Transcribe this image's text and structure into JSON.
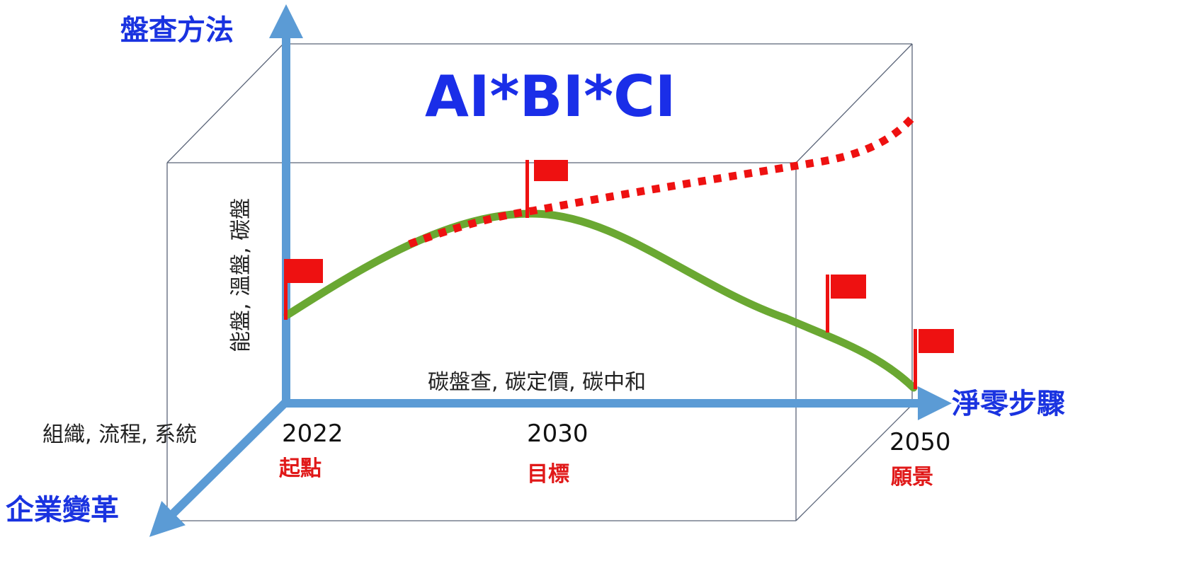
{
  "title": "AI*BI*CI",
  "axes": {
    "vertical_title": "盤查方法",
    "vertical_items": "能盤, 溫盤, 碳盤",
    "horizontal_title": "淨零步驟",
    "horizontal_items": "碳盤查, 碳定價, 碳中和",
    "depth_title": "企業變革",
    "depth_items": "組織, 流程, 系統"
  },
  "milestones": [
    {
      "year": "2022",
      "label": "起點"
    },
    {
      "year": "2030",
      "label": "目標"
    },
    {
      "year": "2050",
      "label": "願景"
    }
  ],
  "colors": {
    "axis": "#5b9bd5",
    "box_line": "#5a6478",
    "green_curve": "#6aa832",
    "red_dotted": "#ee1111",
    "flag": "#ee1111",
    "title": "#1a2ee8"
  }
}
